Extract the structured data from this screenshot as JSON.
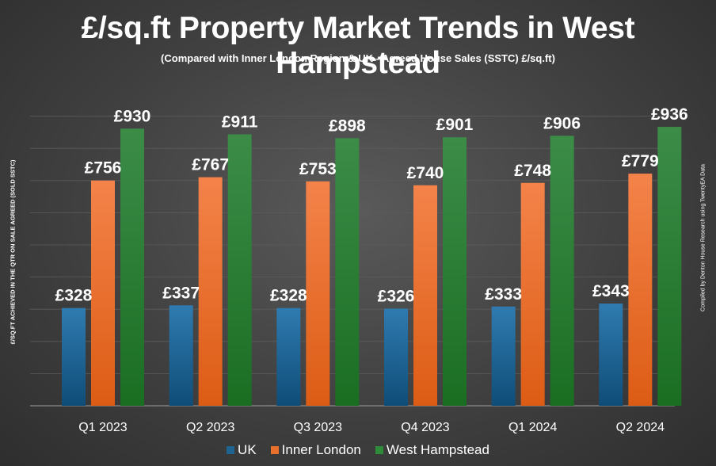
{
  "title": "£/sq.ft Property Market Trends in West Hampstead",
  "subtitle": "(Compared with Inner London Region & UK - Agreed House Sales (SSTC) £/sq.ft)",
  "ylabel": "£/SQ.FT ACHIEVED IN THE QTR ON SALE AGREED (SOLD SSTC)",
  "credit": "Compiled by Denton House Research using TwentyEA Data",
  "colors": {
    "uk": "#1f6391",
    "inner_london": "#e8702a",
    "west_hampstead": "#2e8b3a"
  },
  "chart_data": {
    "type": "bar",
    "title": "£/sq.ft Property Market Trends in West Hampstead",
    "ylabel": "£/SQ.FT ACHIEVED IN THE QTR ON SALE AGREED (SOLD SSTC)",
    "categories": [
      "Q1 2023",
      "Q2 2023",
      "Q3 2023",
      "Q4 2023",
      "Q1 2024",
      "Q2 2024"
    ],
    "series": [
      {
        "name": "UK",
        "values": [
          328,
          337,
          328,
          326,
          333,
          343
        ],
        "labels": [
          "£328",
          "£337",
          "£328",
          "£326",
          "£333",
          "£343"
        ]
      },
      {
        "name": "Inner London",
        "values": [
          756,
          767,
          753,
          740,
          748,
          779
        ],
        "labels": [
          "£756",
          "£767",
          "£753",
          "£740",
          "£748",
          "£779"
        ]
      },
      {
        "name": "West Hampstead",
        "values": [
          930,
          911,
          898,
          901,
          906,
          936
        ],
        "labels": [
          "£930",
          "£911",
          "£898",
          "£901",
          "£906",
          "£936"
        ]
      }
    ],
    "ylim": [
      0,
      1000
    ],
    "grid": true,
    "legend": "bottom"
  }
}
